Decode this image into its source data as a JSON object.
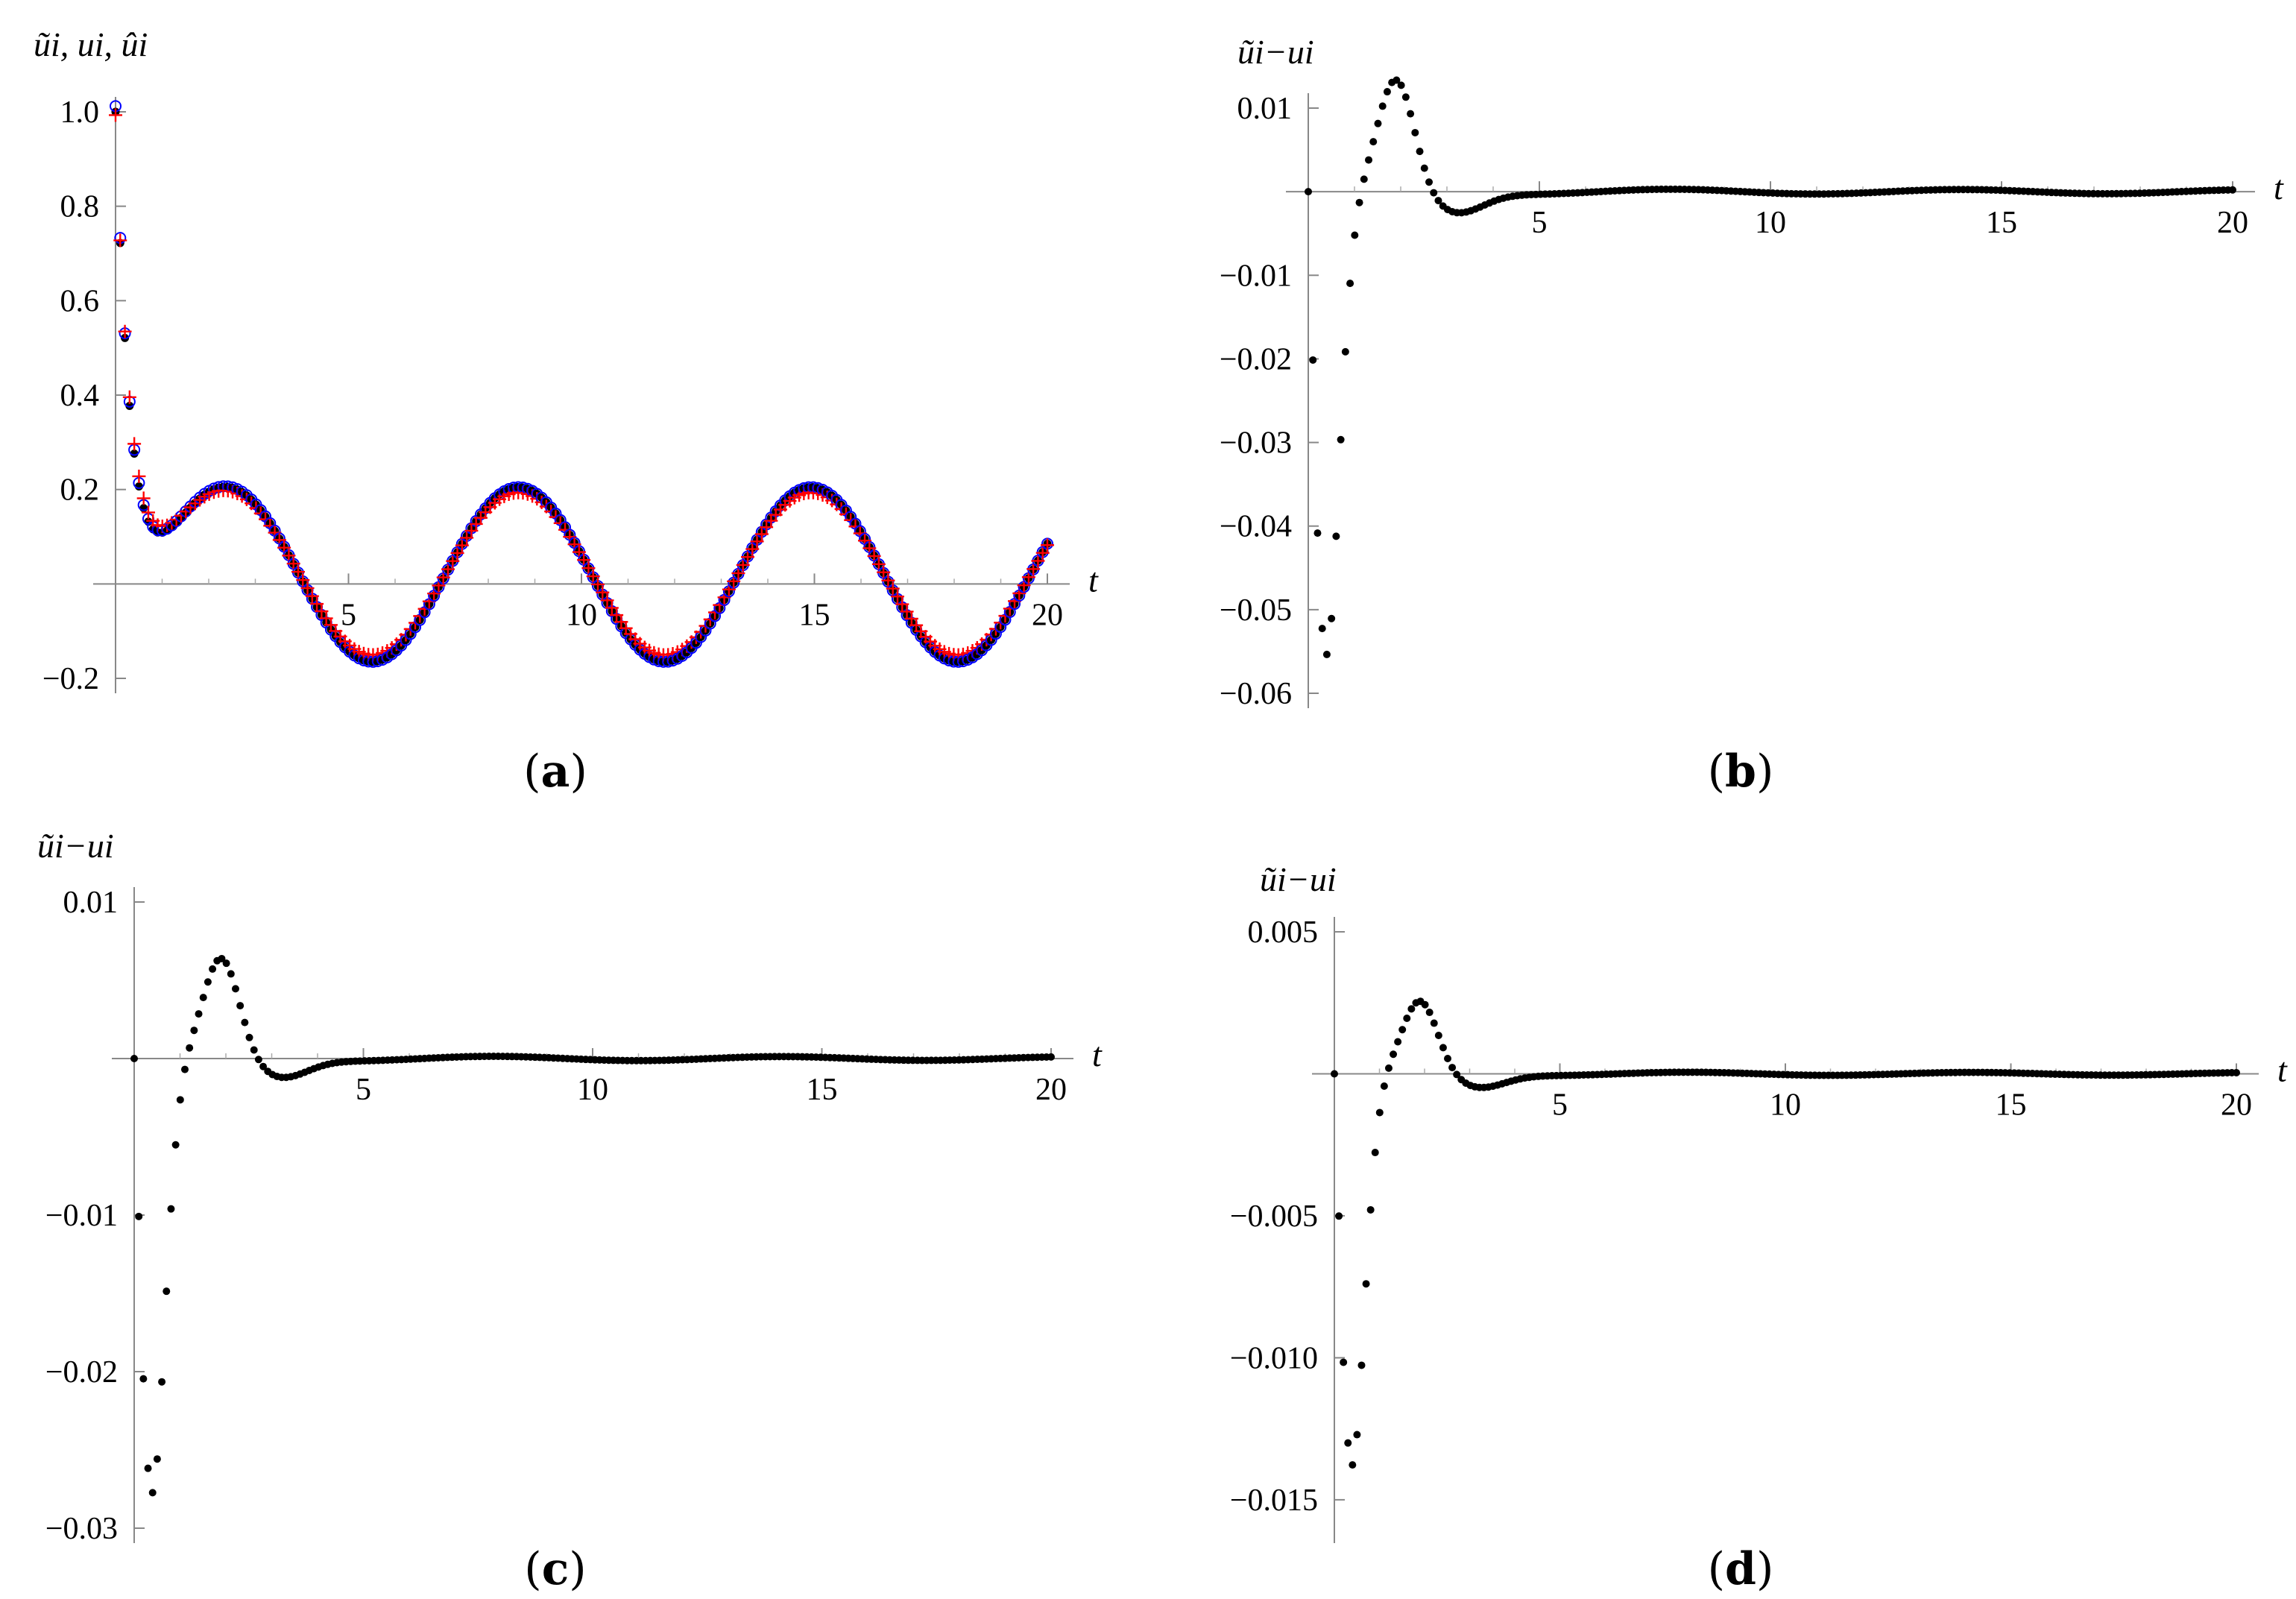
{
  "chart_data": [
    {
      "id": "a",
      "type": "scatter",
      "caption": "a",
      "ylabel": "ũi, ui, ûi",
      "xlabel": "t",
      "xlim": [
        0,
        20
      ],
      "ylim": [
        -0.2,
        1.0
      ],
      "xticks": [
        5,
        10,
        15,
        20
      ],
      "yticks": [
        -0.2,
        0.2,
        0.4,
        0.6,
        0.8,
        1.0
      ],
      "ytick_labels": [
        "−0.2",
        "0.2",
        "0.4",
        "0.6",
        "0.8",
        "1.0"
      ],
      "series": [
        {
          "marker": "disc",
          "color": "#000000",
          "model": "u",
          "n": 200
        },
        {
          "marker": "circle",
          "color": "#0000ff",
          "model": "u_hat",
          "n": 200
        },
        {
          "marker": "plus",
          "color": "#ff0000",
          "model": "u_tilde",
          "n": 200
        }
      ]
    },
    {
      "id": "b",
      "type": "scatter",
      "caption": "b",
      "ylabel": "ũi−ui",
      "xlabel": "t",
      "xlim": [
        0,
        20
      ],
      "ylim": [
        -0.06,
        0.01
      ],
      "xticks": [
        5,
        10,
        15,
        20
      ],
      "yticks": [
        -0.06,
        -0.05,
        -0.04,
        -0.03,
        -0.02,
        -0.01,
        0.01
      ],
      "ytick_labels": [
        "−0.06",
        "−0.05",
        "−0.04",
        "−0.03",
        "−0.02",
        "−0.01",
        "0.01"
      ],
      "error_min": -0.0555,
      "error_min_t": 0.4,
      "error_peak": 0.0115,
      "error_peak_t": 1.9,
      "n": 200
    },
    {
      "id": "c",
      "type": "scatter",
      "caption": "c",
      "ylabel": "ũi−ui",
      "xlabel": "t",
      "xlim": [
        0,
        20
      ],
      "ylim": [
        -0.03,
        0.01
      ],
      "xticks": [
        5,
        10,
        15,
        20
      ],
      "yticks": [
        -0.03,
        -0.02,
        -0.01,
        0.01
      ],
      "ytick_labels": [
        "−0.03",
        "−0.02",
        "−0.01",
        "0.01"
      ],
      "error_min": -0.0278,
      "error_min_t": 0.4,
      "error_peak": 0.0055,
      "error_peak_t": 1.9,
      "n": 200
    },
    {
      "id": "d",
      "type": "scatter",
      "caption": "d",
      "ylabel": "ũi−ui",
      "xlabel": "t",
      "xlim": [
        0,
        20
      ],
      "ylim": [
        -0.016,
        0.005
      ],
      "xticks": [
        5,
        10,
        15,
        20
      ],
      "yticks": [
        -0.015,
        -0.01,
        -0.005,
        0.005
      ],
      "ytick_labels": [
        "−0.015",
        "−0.010",
        "−0.005",
        "0.005"
      ],
      "error_min": -0.0138,
      "error_min_t": 0.4,
      "error_peak": 0.0022,
      "error_peak_t": 1.9,
      "n": 200
    }
  ]
}
